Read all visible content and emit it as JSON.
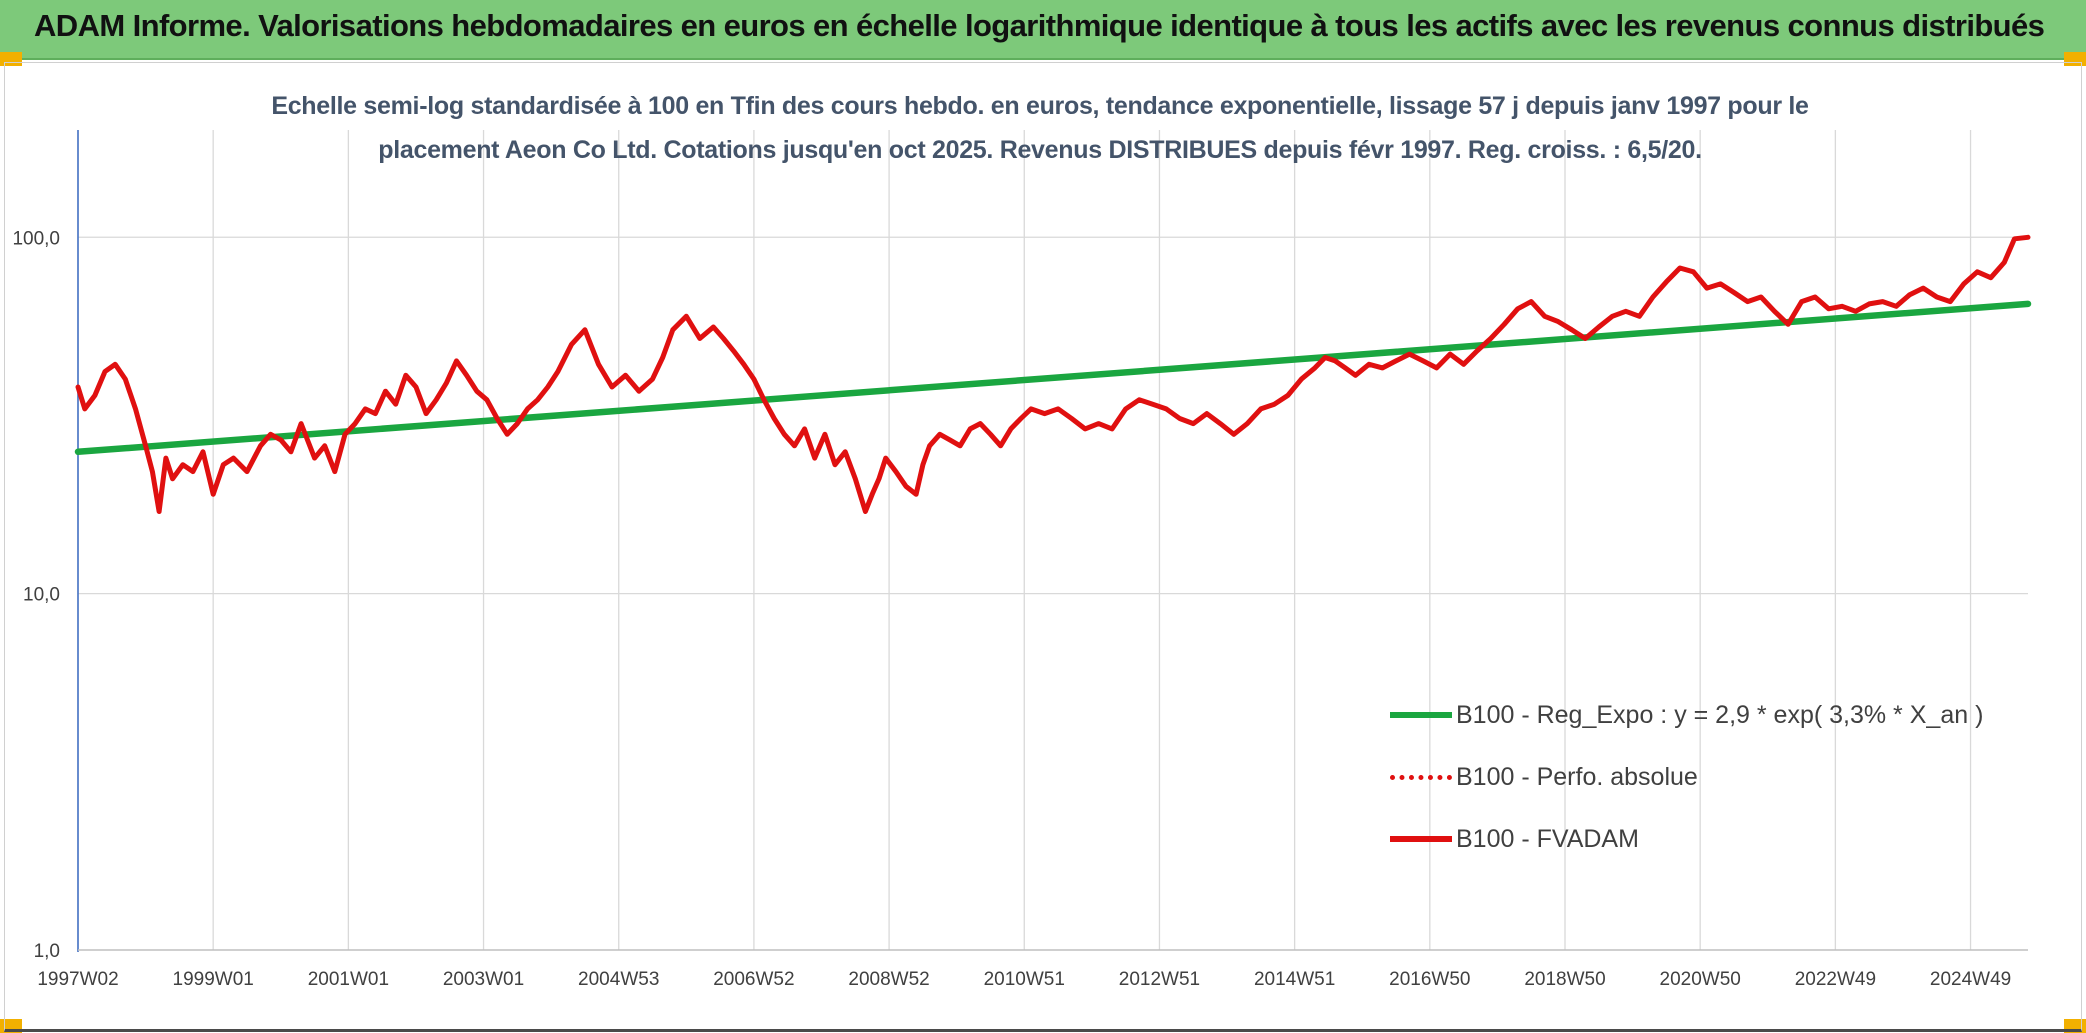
{
  "header": {
    "title": "ADAM Informe. Valorisations hebdomadaires en euros en échelle logarithmique identique à tous les actifs avec les revenus connus distribués"
  },
  "subtitle": {
    "line1": "Echelle semi-log standardisée à 100 en Tfin des cours hebdo. en euros, tendance exponentielle, lissage 57 j depuis janv 1997 pour le",
    "line2": "placement Aeon Co Ltd. Cotations jusqu'en oct 2025. Revenus DISTRIBUES depuis févr 1997. Reg. croiss. : 6,5/20."
  },
  "colors": {
    "trend": "#1aa640",
    "fvadam": "#e01010",
    "grid": "#d9d9d9",
    "axis": "#4472c4",
    "header_bg": "#7dc97a"
  },
  "legend": {
    "placement": "lower-right",
    "items": [
      {
        "label": "B100 - Reg_Expo : y = 2,9 * exp( 3,3% *  X_an )",
        "style": "solid-green"
      },
      {
        "label": "B100 - Perfo. absolue",
        "style": "dotted-red"
      },
      {
        "label": "B100 - FVADAM",
        "style": "solid-red"
      }
    ]
  },
  "chart_data": {
    "type": "line",
    "y_scale": "log",
    "ylim": [
      1,
      200
    ],
    "y_ticks": [
      1,
      10,
      100
    ],
    "y_tick_labels": [
      "1,0",
      "10,0",
      "100,0"
    ],
    "x_range": [
      1997.0,
      2025.85
    ],
    "x_tick_labels": [
      "1997W02",
      "1999W01",
      "2001W01",
      "2003W01",
      "2004W53",
      "2006W52",
      "2008W52",
      "2010W51",
      "2012W51",
      "2014W51",
      "2016W50",
      "2018W50",
      "2020W50",
      "2022W49",
      "2024W49"
    ],
    "x_ticks": [
      1997.0,
      1999.0,
      2001.0,
      2003.0,
      2005.0,
      2007.0,
      2009.0,
      2011.0,
      2013.0,
      2015.0,
      2017.0,
      2019.0,
      2021.0,
      2023.0,
      2025.0
    ],
    "grid": true,
    "series": [
      {
        "name": "B100 - Reg_Expo : y = 2,9 * exp( 3,3% *  X_an )",
        "style": "solid-green",
        "x": [
          1997.0,
          2025.85
        ],
        "y": [
          25,
          65
        ]
      },
      {
        "name": "B100 - Perfo. absolue",
        "style": "dotted-red",
        "x": [],
        "y": []
      },
      {
        "name": "B100 - FVADAM",
        "style": "solid-red",
        "x": [
          1997.0,
          1997.1,
          1997.25,
          1997.4,
          1997.55,
          1997.7,
          1997.85,
          1998.0,
          1998.1,
          1998.2,
          1998.3,
          1998.4,
          1998.55,
          1998.7,
          1998.85,
          1999.0,
          1999.15,
          1999.3,
          1999.5,
          1999.7,
          1999.85,
          2000.0,
          2000.15,
          2000.3,
          2000.5,
          2000.65,
          2000.8,
          2000.95,
          2001.1,
          2001.25,
          2001.4,
          2001.55,
          2001.7,
          2001.85,
          2002.0,
          2002.15,
          2002.3,
          2002.45,
          2002.6,
          2002.75,
          2002.9,
          2003.05,
          2003.2,
          2003.35,
          2003.5,
          2003.65,
          2003.8,
          2003.95,
          2004.1,
          2004.3,
          2004.5,
          2004.7,
          2004.9,
          2005.1,
          2005.3,
          2005.5,
          2005.65,
          2005.8,
          2006.0,
          2006.2,
          2006.4,
          2006.55,
          2006.7,
          2006.85,
          2007.0,
          2007.15,
          2007.3,
          2007.45,
          2007.6,
          2007.75,
          2007.9,
          2008.05,
          2008.2,
          2008.35,
          2008.5,
          2008.65,
          2008.75,
          2008.85,
          2008.95,
          2009.1,
          2009.25,
          2009.4,
          2009.5,
          2009.6,
          2009.75,
          2009.9,
          2010.05,
          2010.2,
          2010.35,
          2010.5,
          2010.65,
          2010.8,
          2010.95,
          2011.1,
          2011.3,
          2011.5,
          2011.7,
          2011.9,
          2012.1,
          2012.3,
          2012.5,
          2012.7,
          2012.9,
          2013.1,
          2013.3,
          2013.5,
          2013.7,
          2013.9,
          2014.1,
          2014.3,
          2014.5,
          2014.7,
          2014.9,
          2015.1,
          2015.3,
          2015.45,
          2015.6,
          2015.75,
          2015.9,
          2016.1,
          2016.3,
          2016.5,
          2016.7,
          2016.9,
          2017.1,
          2017.3,
          2017.5,
          2017.7,
          2017.9,
          2018.1,
          2018.3,
          2018.5,
          2018.7,
          2018.9,
          2019.1,
          2019.3,
          2019.5,
          2019.7,
          2019.9,
          2020.1,
          2020.3,
          2020.5,
          2020.7,
          2020.9,
          2021.1,
          2021.3,
          2021.5,
          2021.7,
          2021.9,
          2022.1,
          2022.3,
          2022.5,
          2022.7,
          2022.9,
          2023.1,
          2023.3,
          2023.5,
          2023.7,
          2023.9,
          2024.1,
          2024.3,
          2024.5,
          2024.7,
          2024.9,
          2025.1,
          2025.3,
          2025.5,
          2025.65,
          2025.85
        ],
        "y": [
          38,
          33,
          36,
          42,
          44,
          40,
          33,
          26,
          22,
          17,
          24,
          21,
          23,
          22,
          25,
          19,
          23,
          24,
          22,
          26,
          28,
          27,
          25,
          30,
          24,
          26,
          22,
          28,
          30,
          33,
          32,
          37,
          34,
          41,
          38,
          32,
          35,
          39,
          45,
          41,
          37,
          35,
          31,
          28,
          30,
          33,
          35,
          38,
          42,
          50,
          55,
          44,
          38,
          41,
          37,
          40,
          46,
          55,
          60,
          52,
          56,
          52,
          48,
          44,
          40,
          35,
          31,
          28,
          26,
          29,
          24,
          28,
          23,
          25,
          21,
          17,
          19,
          21,
          24,
          22,
          20,
          19,
          23,
          26,
          28,
          27,
          26,
          29,
          30,
          28,
          26,
          29,
          31,
          33,
          32,
          33,
          31,
          29,
          30,
          29,
          33,
          35,
          34,
          33,
          31,
          30,
          32,
          30,
          28,
          30,
          33,
          34,
          36,
          40,
          43,
          46,
          45,
          43,
          41,
          44,
          43,
          45,
          47,
          45,
          43,
          47,
          44,
          48,
          52,
          57,
          63,
          66,
          60,
          58,
          55,
          52,
          56,
          60,
          62,
          60,
          68,
          75,
          82,
          80,
          72,
          74,
          70,
          66,
          68,
          62,
          57,
          66,
          68,
          63,
          64,
          62,
          65,
          66,
          64,
          69,
          72,
          68,
          66,
          74,
          80,
          77,
          85,
          99,
          100
        ]
      }
    ]
  }
}
